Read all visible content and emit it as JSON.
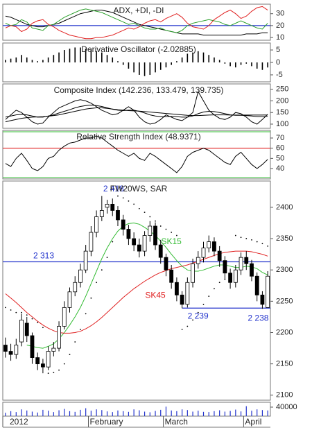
{
  "chart_data": [
    {
      "type": "line",
      "title": "ADX, +DI, -DI",
      "ylim": [
        7.7,
        38
      ],
      "yticks": [
        10,
        20,
        30
      ],
      "reference_lines": [
        {
          "value": 20,
          "color": "#2233cc"
        }
      ],
      "series": [
        {
          "name": "ADX",
          "color": "#000000",
          "values": [
            28,
            27,
            25,
            23,
            21,
            20,
            19,
            19,
            20,
            21,
            22,
            24,
            26,
            28,
            30,
            31,
            32,
            33,
            33,
            32,
            31,
            29,
            27,
            25,
            23,
            21,
            20,
            19,
            18,
            17,
            16,
            15,
            14,
            13,
            13,
            13,
            13,
            12,
            12,
            12,
            12,
            12,
            12,
            12,
            12,
            13,
            13,
            13,
            14,
            14
          ]
        },
        {
          "name": "+DI",
          "color": "#2ca02c",
          "values": [
            22,
            20,
            21,
            25,
            23,
            18,
            17,
            16,
            20,
            21,
            24,
            27,
            29,
            31,
            33,
            34,
            33,
            32,
            31,
            29,
            27,
            25,
            23,
            21,
            22,
            20,
            18,
            17,
            17,
            18,
            16,
            15,
            14,
            16,
            20,
            22,
            23,
            24,
            25,
            24,
            23,
            21,
            20,
            22,
            24,
            22,
            20,
            18,
            17,
            22
          ]
        },
        {
          "name": "-DI",
          "color": "#e02020",
          "values": [
            18,
            20,
            19,
            15,
            17,
            22,
            24,
            25,
            21,
            19,
            16,
            14,
            12,
            11,
            10,
            9,
            9,
            10,
            10,
            11,
            12,
            14,
            16,
            18,
            17,
            19,
            22,
            24,
            25,
            23,
            26,
            28,
            30,
            27,
            22,
            19,
            18,
            17,
            20,
            25,
            28,
            31,
            33,
            30,
            26,
            28,
            32,
            35,
            36,
            33
          ]
        }
      ]
    },
    {
      "type": "bar",
      "title": "Derivative Oscillator (-2.02885)",
      "ylim": [
        -7.8,
        7.8
      ],
      "yticks": [
        5,
        0,
        -5
      ],
      "color": "#000000",
      "values": [
        1,
        1.5,
        2,
        3,
        2,
        1,
        0.5,
        1,
        2,
        3,
        4,
        5,
        5.5,
        6,
        6,
        5.5,
        5,
        4.5,
        4,
        3,
        2,
        0.5,
        -1,
        -2.5,
        -4,
        -5,
        -5.5,
        -5,
        -4,
        -3,
        -2,
        -1,
        0.5,
        2,
        3.5,
        4,
        4.5,
        4,
        3,
        2,
        1,
        -0.5,
        -1.5,
        -2,
        -1,
        -0.5,
        -1.5,
        -2.5,
        -3,
        -2.02885
      ]
    },
    {
      "type": "line",
      "title": "Composite Index (142.236, 133.479, 139.735)",
      "ylim": [
        82,
        273
      ],
      "yticks": [
        100,
        150,
        200,
        250
      ],
      "series": [
        {
          "color": "#000000",
          "values": [
            120,
            140,
            160,
            150,
            130,
            110,
            100,
            105,
            130,
            150,
            170,
            180,
            190,
            200,
            205,
            200,
            190,
            175,
            160,
            150,
            140,
            145,
            160,
            175,
            160,
            130,
            110,
            100,
            105,
            120,
            140,
            130,
            120,
            115,
            130,
            150,
            240,
            200,
            160,
            140,
            125,
            120,
            130,
            150,
            145,
            130,
            110,
            100,
            120,
            142.236
          ]
        },
        {
          "color": "#000000",
          "values": [
            130,
            135,
            140,
            142,
            140,
            135,
            130,
            130,
            135,
            140,
            148,
            155,
            162,
            170,
            176,
            180,
            182,
            180,
            176,
            170,
            164,
            160,
            158,
            160,
            160,
            155,
            148,
            140,
            135,
            132,
            132,
            133,
            132,
            130,
            130,
            135,
            145,
            152,
            155,
            154,
            150,
            145,
            140,
            138,
            138,
            137,
            135,
            132,
            132,
            133.479
          ]
        },
        {
          "color": "#000000",
          "values": [
            110,
            115,
            120,
            125,
            128,
            130,
            131,
            132,
            134,
            137,
            140,
            145,
            150,
            155,
            160,
            165,
            168,
            170,
            170,
            168,
            165,
            162,
            160,
            158,
            157,
            156,
            154,
            152,
            150,
            148,
            146,
            144,
            142,
            140,
            138,
            137,
            137,
            138,
            139,
            140,
            140,
            140,
            139,
            139,
            139,
            139,
            139,
            139,
            139,
            139.735
          ]
        }
      ]
    },
    {
      "type": "line",
      "title": "Relative Strength Index (48.9371)",
      "ylim": [
        29.8,
        77.5
      ],
      "yticks": [
        40,
        50,
        60,
        70
      ],
      "reference_lines": [
        {
          "value": 60,
          "color": "#e02020"
        }
      ],
      "series": [
        {
          "color": "#000000",
          "values": [
            45,
            42,
            50,
            55,
            48,
            40,
            38,
            42,
            50,
            52,
            58,
            62,
            65,
            66,
            68,
            70,
            70,
            72,
            70,
            66,
            62,
            58,
            55,
            52,
            55,
            50,
            48,
            55,
            52,
            48,
            44,
            40,
            36,
            42,
            52,
            56,
            58,
            60,
            58,
            54,
            50,
            46,
            44,
            52,
            56,
            50,
            44,
            40,
            44,
            48.9371
          ]
        }
      ]
    },
    {
      "type": "candlestick",
      "title": "FW20WS, SAR",
      "ylim": [
        2092,
        2442
      ],
      "yticks": [
        2100,
        2150,
        2200,
        2250,
        2300,
        2350,
        2400
      ],
      "open": [
        2180,
        2170,
        2165,
        2185,
        2215,
        2195,
        2160,
        2150,
        2145,
        2170,
        2175,
        2210,
        2240,
        2265,
        2280,
        2300,
        2330,
        2360,
        2385,
        2400,
        2405,
        2395,
        2380,
        2365,
        2350,
        2340,
        2330,
        2355,
        2370,
        2340,
        2320,
        2300,
        2280,
        2260,
        2245,
        2280,
        2310,
        2320,
        2335,
        2345,
        2330,
        2315,
        2295,
        2280,
        2300,
        2320,
        2310,
        2290,
        2260,
        2240
      ],
      "high": [
        2192,
        2182,
        2190,
        2230,
        2225,
        2200,
        2168,
        2158,
        2178,
        2185,
        2218,
        2250,
        2272,
        2290,
        2310,
        2340,
        2370,
        2395,
        2418,
        2412,
        2414,
        2402,
        2388,
        2372,
        2360,
        2350,
        2362,
        2378,
        2376,
        2348,
        2326,
        2308,
        2288,
        2266,
        2288,
        2318,
        2330,
        2345,
        2355,
        2352,
        2338,
        2322,
        2302,
        2308,
        2328,
        2330,
        2316,
        2296,
        2266,
        2298
      ],
      "low": [
        2160,
        2155,
        2158,
        2178,
        2185,
        2150,
        2140,
        2135,
        2140,
        2162,
        2170,
        2205,
        2232,
        2258,
        2272,
        2295,
        2322,
        2352,
        2378,
        2390,
        2386,
        2370,
        2355,
        2340,
        2330,
        2320,
        2322,
        2345,
        2332,
        2310,
        2290,
        2270,
        2250,
        2239,
        2240,
        2272,
        2302,
        2312,
        2328,
        2322,
        2305,
        2285,
        2270,
        2272,
        2292,
        2300,
        2282,
        2250,
        2238,
        2242
      ],
      "close": [
        2170,
        2165,
        2180,
        2220,
        2195,
        2160,
        2150,
        2145,
        2170,
        2175,
        2210,
        2240,
        2265,
        2280,
        2300,
        2330,
        2360,
        2385,
        2395,
        2405,
        2395,
        2380,
        2365,
        2350,
        2340,
        2330,
        2355,
        2370,
        2340,
        2320,
        2300,
        2280,
        2260,
        2245,
        2280,
        2310,
        2320,
        2335,
        2345,
        2330,
        2315,
        2295,
        2280,
        2300,
        2320,
        2310,
        2290,
        2260,
        2245,
        2290
      ],
      "series": [
        {
          "name": "SK15",
          "color": "#33bb33",
          "values": [
            null,
            null,
            null,
            null,
            2180,
            2178,
            2176,
            2175,
            2178,
            2182,
            2190,
            2200,
            2212,
            2225,
            2240,
            2258,
            2278,
            2298,
            2318,
            2335,
            2350,
            2362,
            2370,
            2374,
            2375,
            2373,
            2368,
            2362,
            2355,
            2346,
            2336,
            2325,
            2315,
            2306,
            2300,
            2298,
            2298,
            2300,
            2303,
            2306,
            2308,
            2308,
            2306,
            2304,
            2304,
            2306,
            2305,
            2302,
            2296,
            2292
          ]
        },
        {
          "name": "SK45",
          "color": "#e02020",
          "values": [
            2262,
            2255,
            2248,
            2240,
            2232,
            2225,
            2218,
            2212,
            2207,
            2203,
            2200,
            2199,
            2199,
            2200,
            2202,
            2206,
            2211,
            2217,
            2224,
            2232,
            2240,
            2248,
            2256,
            2263,
            2270,
            2276,
            2282,
            2287,
            2292,
            2296,
            2299,
            2302,
            2304,
            2306,
            2308,
            2311,
            2314,
            2317,
            2320,
            2323,
            2326,
            2328,
            2329,
            2330,
            2330,
            2330,
            2329,
            2327,
            2325,
            2322
          ]
        },
        {
          "color": "#000000",
          "style": "dots",
          "values": [
            2240,
            2236,
            2232,
            2232,
            2228,
            2222,
            2216,
            2208,
            2135,
            2136,
            2140,
            2150,
            2165,
            2185,
            2205,
            2230,
            2255,
            2280,
            2300,
            2320,
            2345,
            2418,
            2415,
            2410,
            2405,
            2398,
            2392,
            2385,
            2378,
            2370,
            2365,
            2360,
            2355,
            2205,
            2210,
            2220,
            2232,
            2245,
            2258,
            2270,
            2280,
            2285,
            2290,
            2355,
            2352,
            2350,
            2348,
            2345,
            2342,
            2338
          ]
        }
      ],
      "reference_lines": [
        {
          "value": 2313,
          "label": "2 313",
          "color": "#2233cc"
        },
        {
          "value": 2239,
          "label": "2 239",
          "color": "#2233cc",
          "from": 33
        }
      ],
      "annotations": [
        {
          "text": "2 418",
          "value": 2418,
          "index": 18
        },
        {
          "text": "2 238",
          "value": 2238,
          "index": 48
        }
      ]
    },
    {
      "type": "bar",
      "ylim": [
        0,
        61500
      ],
      "yticks": [
        40000
      ],
      "color": "#2233cc",
      "categories": [
        "2012",
        null,
        null,
        null,
        null,
        null,
        null,
        null,
        null,
        null,
        null,
        null,
        null,
        null,
        null,
        null,
        "February",
        null,
        null,
        null,
        null,
        null,
        null,
        null,
        null,
        null,
        null,
        null,
        null,
        null,
        "March",
        null,
        null,
        null,
        null,
        null,
        null,
        null,
        null,
        null,
        null,
        null,
        null,
        null,
        null,
        "April",
        null,
        null,
        null,
        null
      ],
      "values": [
        15000,
        22000,
        18000,
        30000,
        25000,
        20000,
        16000,
        28000,
        24000,
        18000,
        26000,
        32000,
        22000,
        19000,
        28000,
        35000,
        24000,
        30000,
        27000,
        21000,
        18000,
        25000,
        22000,
        19000,
        30000,
        26000,
        20000,
        17000,
        23000,
        28000,
        42000,
        25000,
        22000,
        30000,
        27000,
        20000,
        24000,
        19000,
        18000,
        22000,
        26000,
        20000,
        23000,
        29000,
        21000,
        44000,
        24000,
        30000,
        27000,
        25000
      ]
    }
  ]
}
